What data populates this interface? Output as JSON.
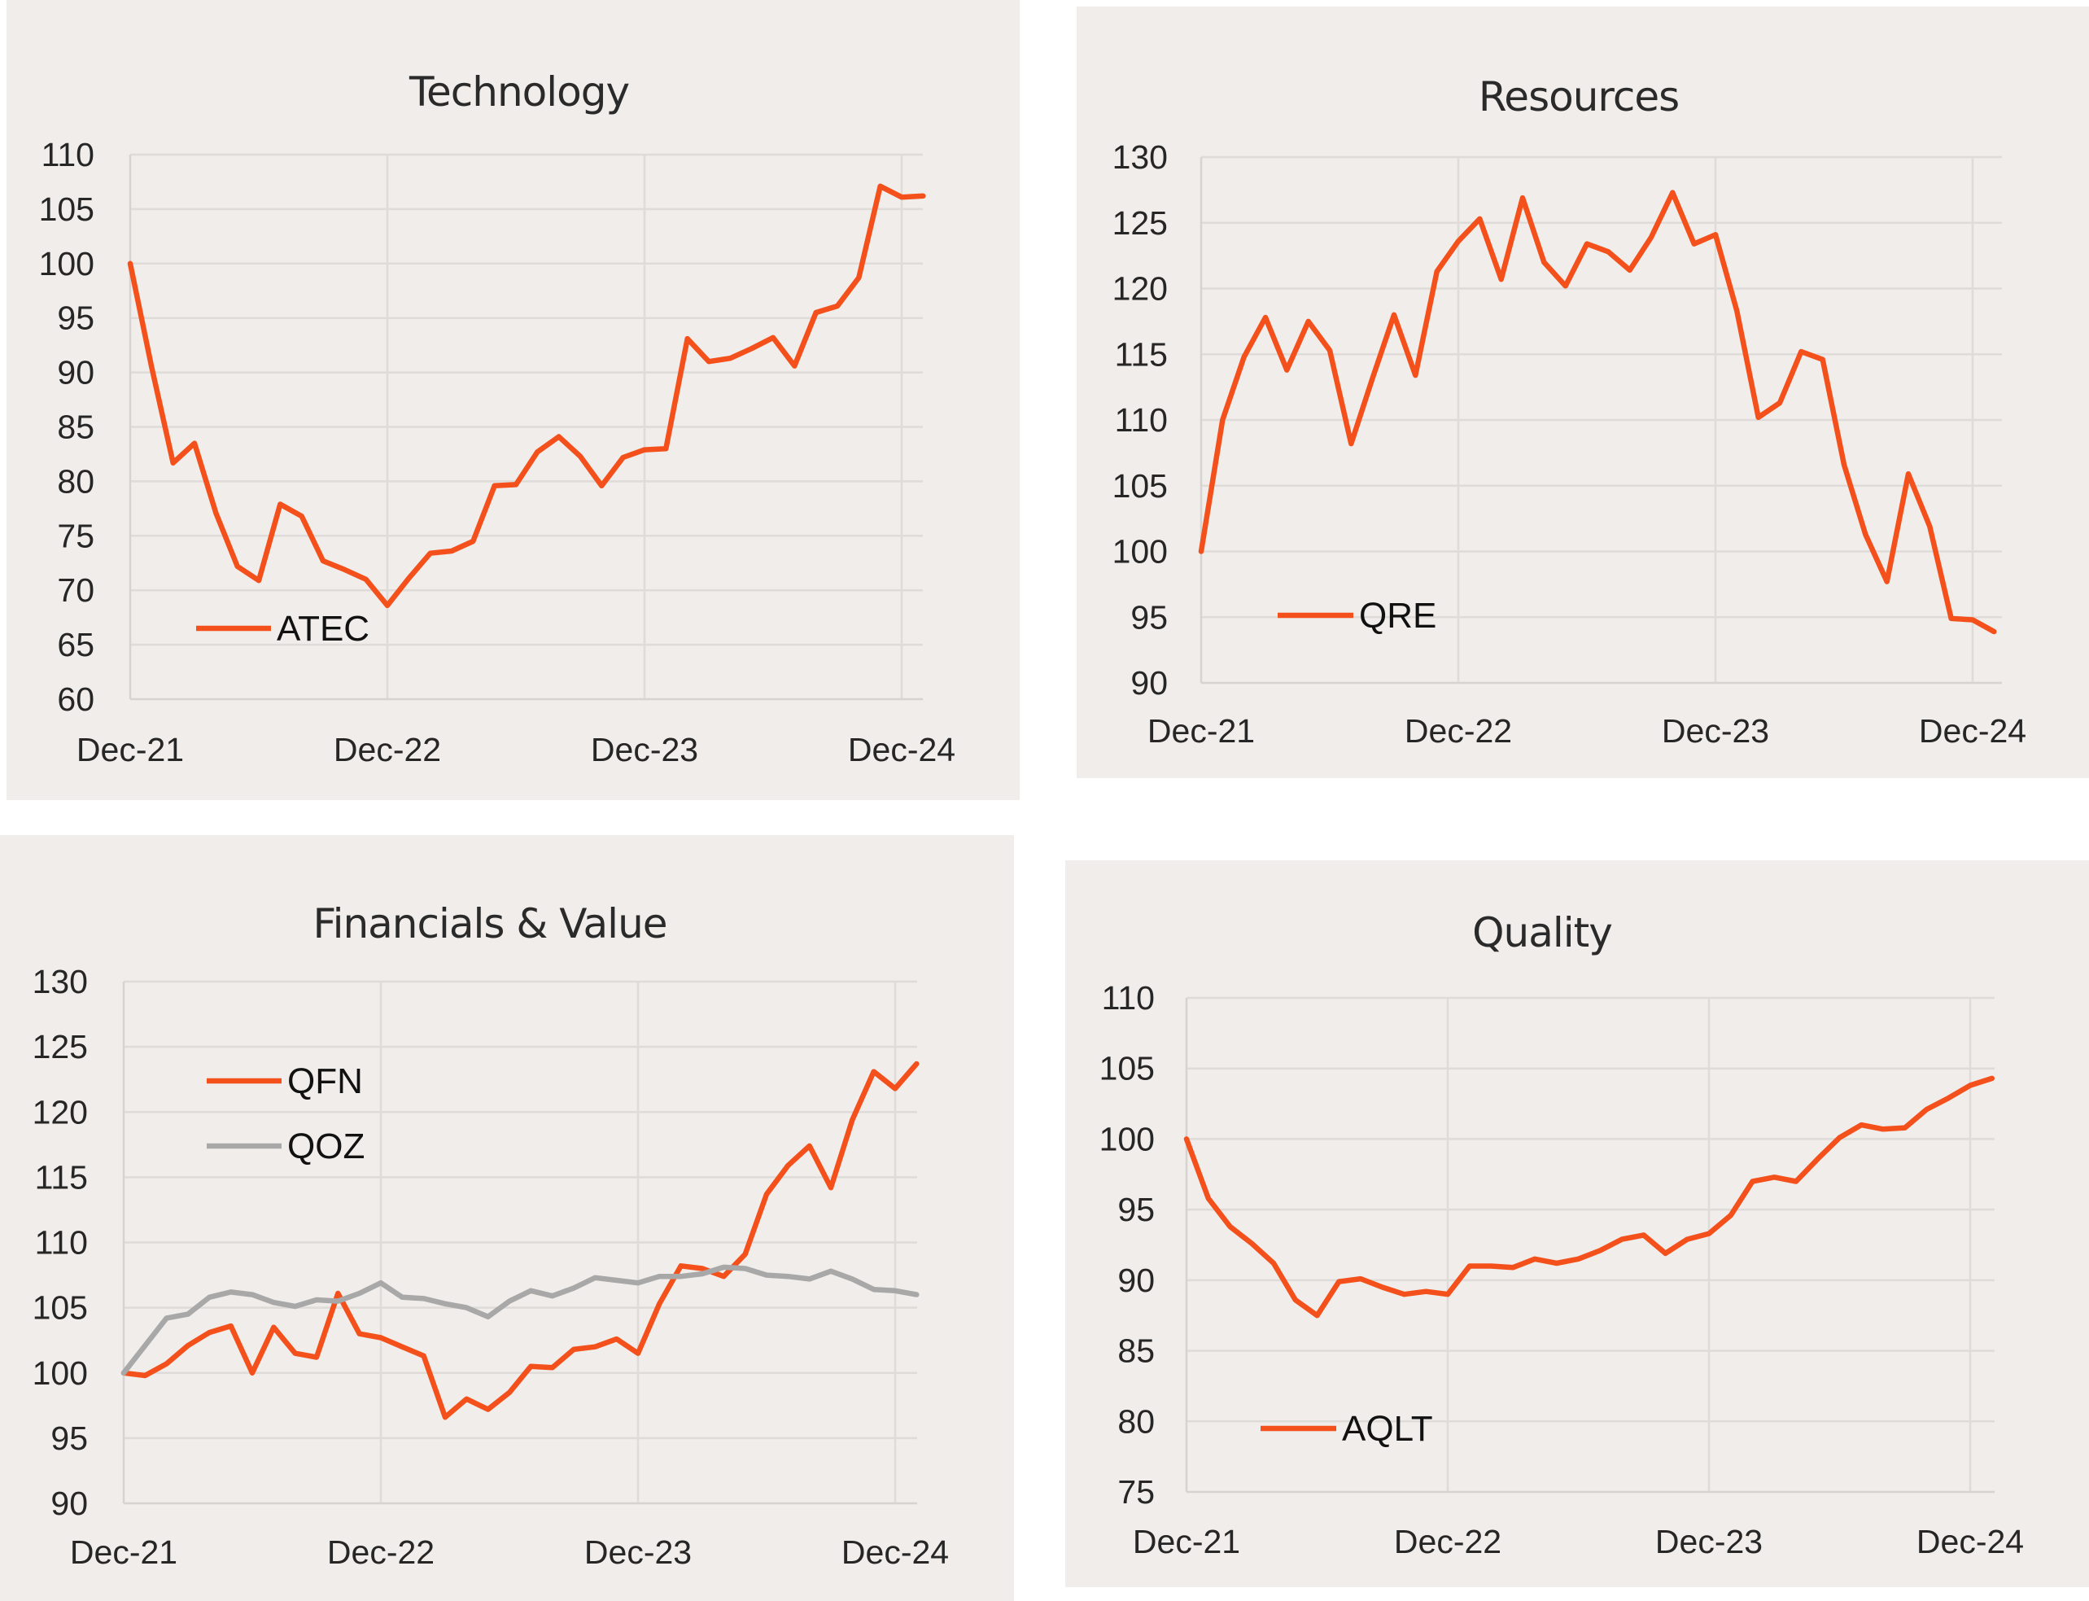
{
  "chart_data": [
    {
      "type": "line",
      "title": "Technology",
      "x_ticks": [
        "Dec-21",
        "Dec-22",
        "Dec-23",
        "Dec-24"
      ],
      "y_ticks": [
        60,
        65,
        70,
        75,
        80,
        85,
        90,
        95,
        100,
        105,
        110
      ],
      "ylim": [
        60,
        110
      ],
      "legend_position": "bottom-left",
      "series": [
        {
          "name": "ATEC",
          "color": "#f4501c",
          "values": [
            100,
            90.5,
            81.7,
            83.5,
            77.1,
            72.2,
            70.9,
            77.9,
            76.8,
            72.7,
            71.9,
            71,
            68.6,
            71.1,
            73.4,
            73.6,
            74.5,
            79.6,
            79.7,
            82.7,
            84.1,
            82.3,
            79.6,
            82.2,
            82.9,
            83,
            93.1,
            91,
            91.3,
            92.2,
            93.2,
            90.6,
            95.5,
            96.1,
            98.7,
            107.1,
            106.1,
            106.2
          ]
        }
      ]
    },
    {
      "type": "line",
      "title": "Resources",
      "x_ticks": [
        "Dec-21",
        "Dec-22",
        "Dec-23",
        "Dec-24"
      ],
      "y_ticks": [
        90,
        95,
        100,
        105,
        110,
        115,
        120,
        125,
        130
      ],
      "ylim": [
        90,
        130
      ],
      "legend_position": "bottom-left",
      "series": [
        {
          "name": "QRE",
          "color": "#f4501c",
          "values": [
            100,
            110,
            114.8,
            117.8,
            113.8,
            117.5,
            115.3,
            108.2,
            113.2,
            118,
            113.4,
            121.3,
            123.6,
            125.3,
            120.7,
            126.9,
            122,
            120.2,
            123.4,
            122.8,
            121.4,
            123.9,
            127.3,
            123.4,
            124.1,
            118.3,
            110.2,
            111.3,
            115.2,
            114.6,
            106.6,
            101.3,
            97.7,
            105.9,
            101.9,
            94.9,
            94.8,
            93.9
          ]
        }
      ]
    },
    {
      "type": "line",
      "title": "Financials & Value",
      "x_ticks": [
        "Dec-21",
        "Dec-22",
        "Dec-23",
        "Dec-24"
      ],
      "y_ticks": [
        90,
        95,
        100,
        105,
        110,
        115,
        120,
        125,
        130
      ],
      "ylim": [
        90,
        130
      ],
      "legend_position": "top-left",
      "series": [
        {
          "name": "QFN",
          "color": "#f4501c",
          "values": [
            100,
            99.8,
            100.7,
            102.1,
            103.1,
            103.6,
            100,
            103.5,
            101.5,
            101.2,
            106.1,
            103,
            102.7,
            102,
            101.3,
            96.6,
            98,
            97.2,
            98.5,
            100.5,
            100.4,
            101.8,
            102,
            102.6,
            101.5,
            105.3,
            108.2,
            108,
            107.4,
            109.1,
            113.7,
            115.9,
            117.4,
            114.2,
            119.4,
            123.1,
            121.8,
            123.7
          ]
        },
        {
          "name": "QOZ",
          "color": "#a8a8a8",
          "values": [
            100,
            102.1,
            104.2,
            104.5,
            105.8,
            106.2,
            106,
            105.4,
            105.1,
            105.6,
            105.5,
            106.1,
            106.9,
            105.8,
            105.7,
            105.3,
            105,
            104.3,
            105.5,
            106.3,
            105.9,
            106.5,
            107.3,
            107.1,
            106.9,
            107.4,
            107.4,
            107.6,
            108.1,
            108,
            107.5,
            107.4,
            107.2,
            107.8,
            107.2,
            106.4,
            106.3,
            106
          ]
        }
      ]
    },
    {
      "type": "line",
      "title": "Quality",
      "x_ticks": [
        "Dec-21",
        "Dec-22",
        "Dec-23",
        "Dec-24"
      ],
      "y_ticks": [
        75,
        80,
        85,
        90,
        95,
        100,
        105,
        110
      ],
      "ylim": [
        75,
        110
      ],
      "legend_position": "bottom-left",
      "series": [
        {
          "name": "AQLT",
          "color": "#f4501c",
          "values": [
            100,
            95.8,
            93.8,
            92.6,
            91.2,
            88.6,
            87.5,
            89.9,
            90.1,
            89.5,
            89,
            89.2,
            89,
            91,
            91,
            90.9,
            91.5,
            91.2,
            91.5,
            92.1,
            92.9,
            93.2,
            91.9,
            92.9,
            93.3,
            94.6,
            97,
            97.3,
            97,
            98.6,
            100.1,
            101,
            100.7,
            100.8,
            102.1,
            102.9,
            103.8,
            104.3
          ]
        }
      ]
    }
  ]
}
